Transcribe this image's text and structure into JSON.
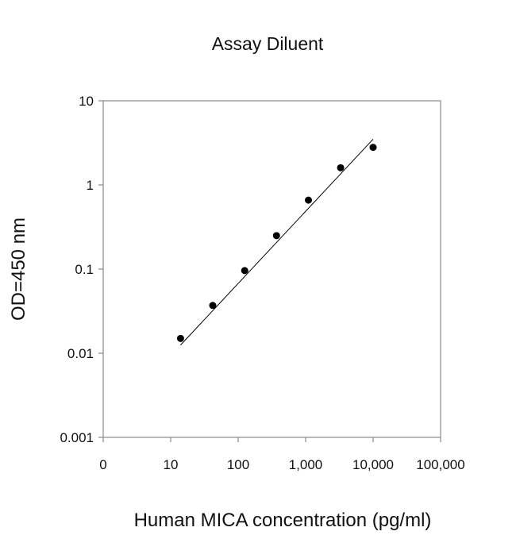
{
  "chart_data": {
    "type": "scatter",
    "title": "Assay Diluent",
    "xlabel": "Human MICA concentration (pg/ml)",
    "ylabel": "OD=450 nm",
    "x_scale": "log",
    "y_scale": "log",
    "xlim": [
      1,
      100000
    ],
    "ylim": [
      0.001,
      10
    ],
    "x_ticks": [
      {
        "value": 1,
        "label": "0"
      },
      {
        "value": 10,
        "label": "10"
      },
      {
        "value": 100,
        "label": "100"
      },
      {
        "value": 1000,
        "label": "1,000"
      },
      {
        "value": 10000,
        "label": "10,000"
      },
      {
        "value": 100000,
        "label": "100,000"
      }
    ],
    "y_ticks": [
      {
        "value": 0.001,
        "label": "0.001"
      },
      {
        "value": 0.01,
        "label": "0.01"
      },
      {
        "value": 0.1,
        "label": "0.1"
      },
      {
        "value": 1,
        "label": "1"
      },
      {
        "value": 10,
        "label": "10"
      }
    ],
    "grid": false,
    "legend": "none",
    "series": [
      {
        "points": [
          {
            "x": 14,
            "y": 0.015
          },
          {
            "x": 42,
            "y": 0.037
          },
          {
            "x": 125,
            "y": 0.096
          },
          {
            "x": 370,
            "y": 0.25
          },
          {
            "x": 1100,
            "y": 0.66
          },
          {
            "x": 3300,
            "y": 1.6
          },
          {
            "x": 10000,
            "y": 2.8
          }
        ],
        "color": "#000000"
      }
    ],
    "trendline": {
      "x": [
        14,
        10000
      ],
      "y": [
        0.0125,
        3.5
      ],
      "color": "#000000"
    }
  }
}
